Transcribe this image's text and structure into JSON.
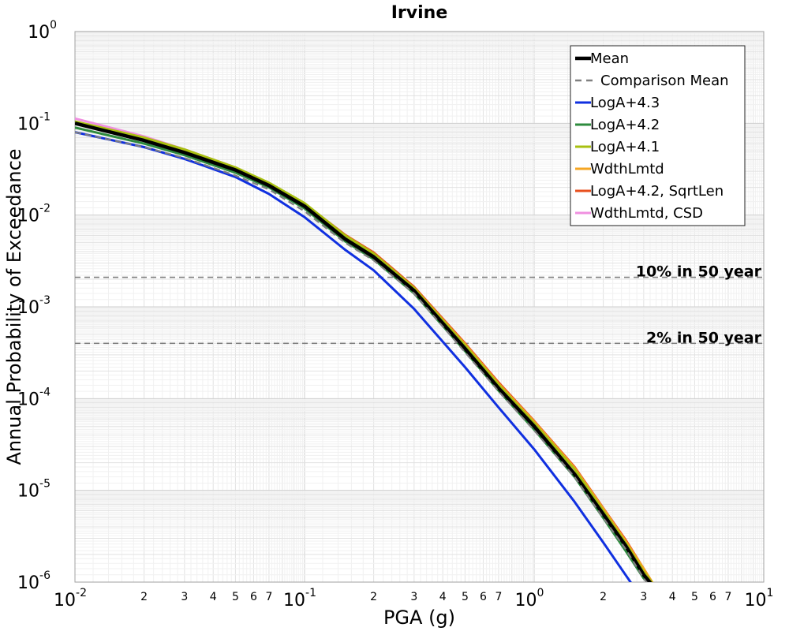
{
  "chart_data": {
    "type": "line",
    "title": "Irvine",
    "xlabel": "PGA (g)",
    "ylabel": "Annual Probability of Exceedance",
    "xscale": "log",
    "yscale": "log",
    "xlim": [
      0.01,
      10
    ],
    "ylim": [
      1e-06,
      1
    ],
    "grid": true,
    "legend_position": "top-right",
    "x_major_ticks": [
      {
        "base": "10",
        "exp": "-2"
      },
      {
        "base": "10",
        "exp": "-1"
      },
      {
        "base": "10",
        "exp": "0"
      },
      {
        "base": "10",
        "exp": "1"
      }
    ],
    "y_major_ticks": [
      {
        "base": "10",
        "exp": "0"
      },
      {
        "base": "10",
        "exp": "-1"
      },
      {
        "base": "10",
        "exp": "-2"
      },
      {
        "base": "10",
        "exp": "-3"
      },
      {
        "base": "10",
        "exp": "-4"
      },
      {
        "base": "10",
        "exp": "-5"
      },
      {
        "base": "10",
        "exp": "-6"
      }
    ],
    "x_minor_tick_labels": [
      "2",
      "3",
      "4",
      "5",
      "6",
      "7"
    ],
    "reference_lines": [
      {
        "label": "10% in 50 year",
        "y": 0.0021
      },
      {
        "label": "2% in 50 year",
        "y": 0.0004
      }
    ],
    "series": [
      {
        "name": "Mean",
        "color": "#000000",
        "dash": "solid",
        "x": [
          0.01,
          0.02,
          0.03,
          0.05,
          0.07,
          0.1,
          0.15,
          0.2,
          0.3,
          0.5,
          0.7,
          1.0,
          1.5,
          2.0,
          2.5,
          3.0,
          3.3
        ],
        "y": [
          0.1,
          0.065,
          0.048,
          0.031,
          0.021,
          0.0125,
          0.0055,
          0.0035,
          0.0015,
          0.00035,
          0.00013,
          5e-05,
          1.5e-05,
          5.5e-06,
          2.5e-06,
          1.2e-06,
          9e-07
        ]
      },
      {
        "name": "Comparison Mean",
        "color": "#808080",
        "dash": "dashed",
        "x": [
          0.01,
          0.02,
          0.03,
          0.05,
          0.07,
          0.1,
          0.15,
          0.2,
          0.3,
          0.5,
          0.7,
          1.0,
          1.5,
          2.0,
          2.5,
          3.0,
          3.3
        ],
        "y": [
          0.08,
          0.055,
          0.042,
          0.027,
          0.019,
          0.011,
          0.005,
          0.0032,
          0.0014,
          0.00032,
          0.00012,
          4.5e-05,
          1.4e-05,
          5e-06,
          2.3e-06,
          1.1e-06,
          8e-07
        ]
      },
      {
        "name": "LogA+4.3",
        "color": "#1030e0",
        "dash": "solid",
        "x": [
          0.01,
          0.02,
          0.03,
          0.05,
          0.07,
          0.1,
          0.15,
          0.2,
          0.3,
          0.5,
          0.7,
          1.0,
          1.5,
          2.0,
          2.5,
          2.9,
          3.1
        ],
        "y": [
          0.08,
          0.055,
          0.041,
          0.026,
          0.017,
          0.0095,
          0.0042,
          0.0025,
          0.00095,
          0.00022,
          8e-05,
          2.8e-05,
          7.5e-06,
          2.7e-06,
          1.2e-06,
          7e-07,
          1e-06
        ]
      },
      {
        "name": "LogA+4.2",
        "color": "#2e8b3e",
        "dash": "solid",
        "x": [
          0.01,
          0.02,
          0.03,
          0.05,
          0.07,
          0.1,
          0.15,
          0.2,
          0.3,
          0.5,
          0.7,
          1.0,
          1.5,
          2.0,
          2.5,
          3.0,
          3.25
        ],
        "y": [
          0.09,
          0.06,
          0.045,
          0.029,
          0.02,
          0.0118,
          0.0052,
          0.0033,
          0.0014,
          0.00033,
          0.000122,
          4.6e-05,
          1.4e-05,
          5e-06,
          2.2e-06,
          1.1e-06,
          9e-07
        ]
      },
      {
        "name": "LogA+4.1",
        "color": "#a8c010",
        "dash": "solid",
        "x": [
          0.01,
          0.02,
          0.03,
          0.05,
          0.07,
          0.1,
          0.15,
          0.2,
          0.3,
          0.5,
          0.7,
          1.0,
          1.5,
          2.0,
          2.5,
          3.0,
          3.35
        ],
        "y": [
          0.105,
          0.07,
          0.052,
          0.033,
          0.0225,
          0.0135,
          0.006,
          0.0038,
          0.0016,
          0.00038,
          0.000142,
          5.4e-05,
          1.7e-05,
          6e-06,
          2.7e-06,
          1.3e-06,
          9e-07
        ]
      },
      {
        "name": "WdthLmtd",
        "color": "#f5a623",
        "dash": "solid",
        "x": [
          0.01,
          0.02,
          0.03,
          0.05,
          0.07,
          0.1,
          0.15,
          0.2,
          0.3,
          0.5,
          0.7,
          1.0,
          1.5,
          2.0,
          2.5,
          3.0,
          3.35
        ],
        "y": [
          0.1,
          0.066,
          0.049,
          0.032,
          0.0218,
          0.0132,
          0.006,
          0.0038,
          0.0016,
          0.00039,
          0.000145,
          5.6e-05,
          1.75e-05,
          6.3e-06,
          2.8e-06,
          1.4e-06,
          9e-07
        ]
      },
      {
        "name": "LogA+4.2, SqrtLen",
        "color": "#e8501e",
        "dash": "solid",
        "x": [
          0.01,
          0.02,
          0.03,
          0.05,
          0.07,
          0.1,
          0.15,
          0.2,
          0.3,
          0.5,
          0.7,
          1.0,
          1.5,
          2.0,
          2.5,
          3.0,
          3.35
        ],
        "y": [
          0.1,
          0.066,
          0.049,
          0.032,
          0.022,
          0.0133,
          0.0061,
          0.0039,
          0.00165,
          0.0004,
          0.00015,
          5.7e-05,
          1.8e-05,
          6.4e-06,
          2.9e-06,
          1.4e-06,
          9e-07
        ]
      },
      {
        "name": "WdthLmtd, CSD",
        "color": "#f090e0",
        "dash": "solid",
        "x": [
          0.01,
          0.02,
          0.03,
          0.05,
          0.07,
          0.1,
          0.15,
          0.2,
          0.3,
          0.5,
          0.7,
          1.0,
          1.5,
          2.0,
          2.5,
          3.0,
          3.3
        ],
        "y": [
          0.113,
          0.072,
          0.052,
          0.033,
          0.0222,
          0.013,
          0.0058,
          0.0036,
          0.0015,
          0.00036,
          0.000133,
          5e-05,
          1.55e-05,
          5.6e-06,
          2.5e-06,
          1.2e-06,
          9e-07
        ]
      }
    ]
  }
}
